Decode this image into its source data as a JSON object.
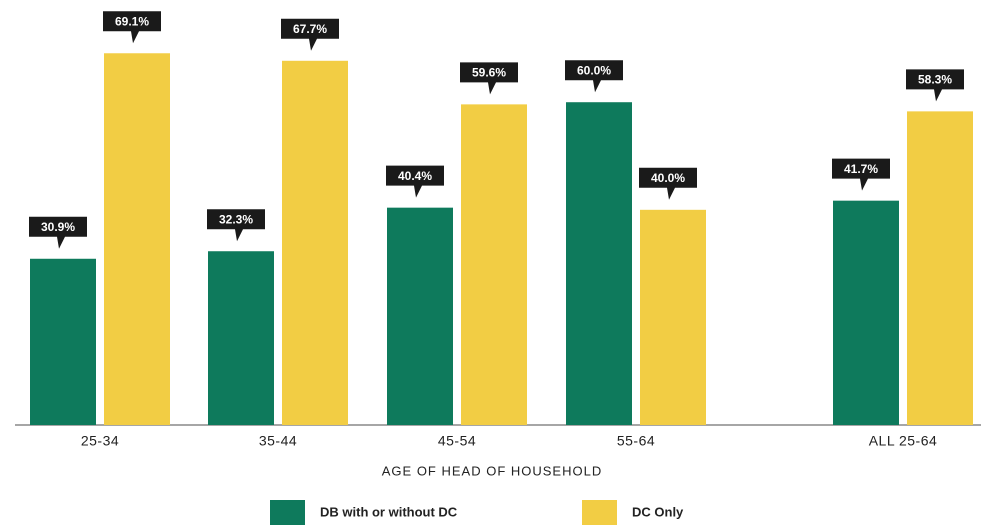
{
  "chart_data": {
    "type": "bar",
    "categories": [
      "25-34",
      "35-44",
      "45-54",
      "55-64",
      "ALL 25-64"
    ],
    "x_label": "AGE OF HEAD OF HOUSEHOLD",
    "ylim": [
      0,
      79
    ],
    "legend": "bottom",
    "series": [
      {
        "name": "DB with or without DC",
        "color": "#0e7a5c",
        "values": [
          30.9,
          32.3,
          40.4,
          60.0,
          41.7
        ],
        "value_labels": [
          "30.9%",
          "32.3%",
          "40.4%",
          "60.0%",
          "41.7%"
        ]
      },
      {
        "name": "DC Only",
        "color": "#f2cd44",
        "values": [
          69.1,
          67.7,
          59.6,
          40.0,
          58.3
        ],
        "value_labels": [
          "69.1%",
          "67.7%",
          "59.6%",
          "40.0%",
          "58.3%"
        ]
      }
    ]
  }
}
